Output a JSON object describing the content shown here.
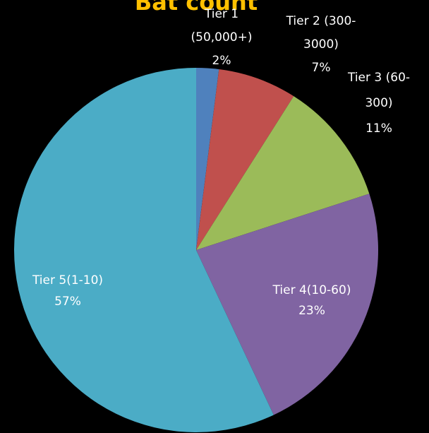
{
  "chart_data": {
    "type": "pie",
    "title": "Bat count",
    "categories": [
      "Tier 1 (50,000+)",
      "Tier 2 (300-3000)",
      "Tier 3 (60-300)",
      "Tier 4(10-60)",
      "Tier 5(1-10)"
    ],
    "values": [
      2,
      7,
      11,
      23,
      57
    ],
    "value_labels": [
      "2%",
      "7%",
      "11%",
      "23%",
      "57%"
    ],
    "colors": [
      "#4f81bd",
      "#c0504d",
      "#9bbb59",
      "#8064a2",
      "#4bacc6"
    ]
  }
}
